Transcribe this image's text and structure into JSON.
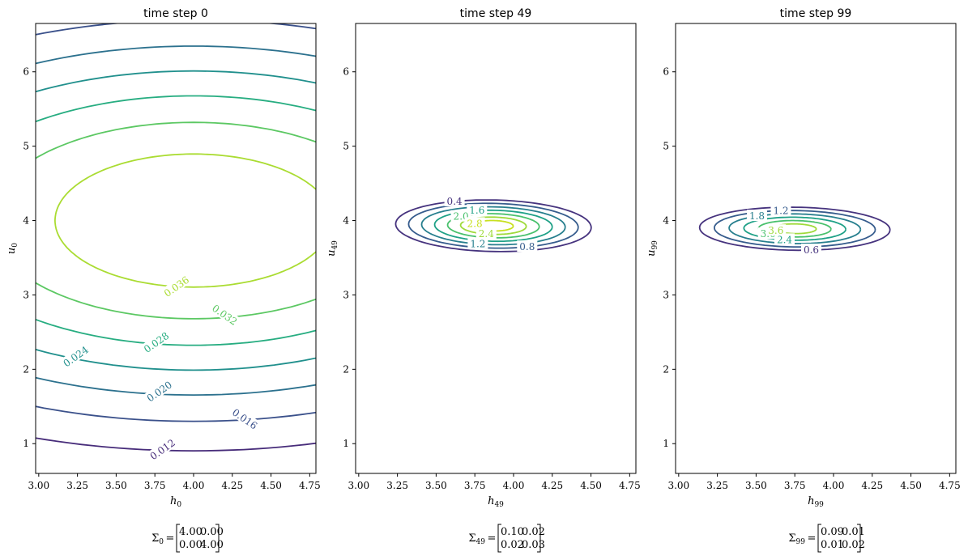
{
  "chart_data": [
    {
      "type": "contour",
      "title": "time step 0",
      "xlabel": "h",
      "xlabel_sub": "0",
      "ylabel": "u",
      "ylabel_sub": "0",
      "xlim": [
        2.98,
        4.79
      ],
      "ylim": [
        0.6,
        6.65
      ],
      "xticks": [
        "3.00",
        "3.25",
        "3.50",
        "3.75",
        "4.00",
        "4.25",
        "4.50",
        "4.75"
      ],
      "yticks": [
        "1",
        "2",
        "3",
        "4",
        "5",
        "6"
      ],
      "mean": [
        4.0,
        4.0
      ],
      "cov_label": "Σ",
      "cov_sub": "0",
      "cov": [
        [
          "4.00",
          "0.00"
        ],
        [
          "0.00",
          "4.00"
        ]
      ],
      "levels": [
        {
          "value": 0.012,
          "label": "0.012",
          "color": "#472c7a",
          "label_pos": [
            3.8,
            0.92
          ]
        },
        {
          "value": 0.016,
          "label": "0.016",
          "color": "#3b518b",
          "label_pos": [
            4.33,
            1.33
          ]
        },
        {
          "value": 0.02,
          "label": "0.020",
          "color": "#2c718e",
          "label_pos": [
            3.78,
            1.7
          ]
        },
        {
          "value": 0.024,
          "label": "0.024",
          "color": "#21908d",
          "label_pos": [
            3.24,
            2.17
          ]
        },
        {
          "value": 0.028,
          "label": "0.028",
          "color": "#27ad81",
          "label_pos": [
            3.76,
            2.36
          ]
        },
        {
          "value": 0.032,
          "label": "0.032",
          "color": "#5cc863",
          "label_pos": [
            4.2,
            2.73
          ]
        },
        {
          "value": 0.036,
          "label": "0.036",
          "color": "#aadc32",
          "label_pos": [
            3.89,
            3.11
          ]
        }
      ]
    },
    {
      "type": "contour",
      "title": "time step 49",
      "xlabel": "h",
      "xlabel_sub": "49",
      "ylabel": "u",
      "ylabel_sub": "49",
      "xlim": [
        2.98,
        4.79
      ],
      "ylim": [
        0.6,
        6.65
      ],
      "xticks": [
        "3.00",
        "3.25",
        "3.50",
        "3.75",
        "4.00",
        "4.25",
        "4.50",
        "4.75"
      ],
      "yticks": [
        "1",
        "2",
        "3",
        "4",
        "5",
        "6"
      ],
      "mean": [
        3.87,
        3.93
      ],
      "cov_label": "Σ",
      "cov_sub": "49",
      "cov": [
        [
          "0.10",
          "0.02"
        ],
        [
          "0.02",
          "0.03"
        ]
      ],
      "levels": [
        {
          "value": 0.4,
          "label": "0.4",
          "color": "#46337e"
        },
        {
          "value": 0.8,
          "label": "0.8",
          "color": "#365c8d"
        },
        {
          "value": 1.2,
          "label": "1.2",
          "color": "#277f8e"
        },
        {
          "value": 1.6,
          "label": "1.6",
          "color": "#1fa187"
        },
        {
          "value": 2.0,
          "label": "2.0",
          "color": "#4ac16d"
        },
        {
          "value": 2.4,
          "label": "2.4",
          "color": "#9fda3a"
        },
        {
          "value": 2.8,
          "label": "2.8",
          "color": "#c8e020"
        }
      ]
    },
    {
      "type": "contour",
      "title": "time step 99",
      "xlabel": "h",
      "xlabel_sub": "99",
      "ylabel": "u",
      "ylabel_sub": "99",
      "xlim": [
        2.98,
        4.79
      ],
      "ylim": [
        0.6,
        6.65
      ],
      "xticks": [
        "3.00",
        "3.25",
        "3.50",
        "3.75",
        "4.00",
        "4.25",
        "4.50",
        "4.75"
      ],
      "yticks": [
        "1",
        "2",
        "3",
        "4",
        "5",
        "6"
      ],
      "mean": [
        3.75,
        3.89
      ],
      "cov_label": "Σ",
      "cov_sub": "99",
      "cov": [
        [
          "0.09",
          "0.01"
        ],
        [
          "0.01",
          "0.02"
        ]
      ],
      "levels": [
        {
          "value": 0.6,
          "label": "0.6",
          "color": "#46337e"
        },
        {
          "value": 1.2,
          "label": "1.2",
          "color": "#365c8d"
        },
        {
          "value": 1.8,
          "label": "1.8",
          "color": "#277f8e"
        },
        {
          "value": 2.4,
          "label": "2.4",
          "color": "#1fa187"
        },
        {
          "value": 3.0,
          "label": "3.0",
          "color": "#4ac16d"
        },
        {
          "value": 3.6,
          "label": "3.6",
          "color": "#9fda3a"
        }
      ]
    }
  ]
}
